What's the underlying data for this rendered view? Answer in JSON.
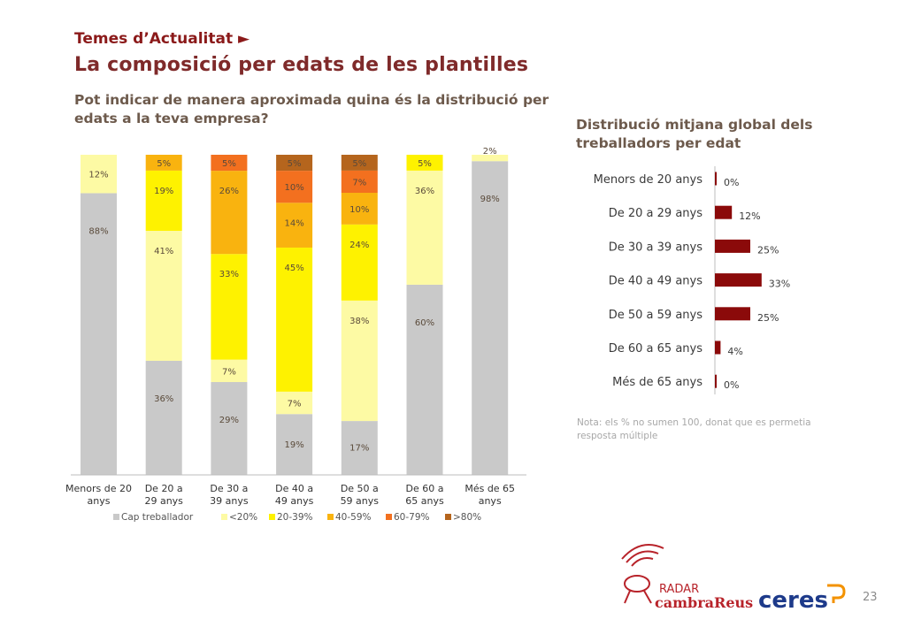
{
  "header": {
    "section": "Temes d’Actualitat ►",
    "title": "La composició per edats de les plantilles",
    "question": "Pot indicar de manera aproximada quina és la distribució per edats a la teva empresa?"
  },
  "right_panel": {
    "title": "Distribució mitjana global dels treballadors per edat",
    "note": "Nota: els % no sumen 100, donat que es permetia resposta múltiple"
  },
  "footer": {
    "page_number": "23",
    "logo_radar": "RADAR",
    "logo_cambra": "cambraReus",
    "logo_ceres": "ceres"
  },
  "chart_data": [
    {
      "type": "bar",
      "stacked": true,
      "categories": [
        "Menors de 20 anys",
        "De 20 a 29 anys",
        "De 30 a 39 anys",
        "De 40 a 49 anys",
        "De 50 a 59 anys",
        "De 60 a 65 anys",
        "Més de 65 anys"
      ],
      "series": [
        {
          "name": "Cap treballador",
          "color": "#c9c9c9",
          "values": [
            88,
            36,
            29,
            19,
            17,
            60,
            98
          ]
        },
        {
          "name": "<20%",
          "color": "#fdfaa4",
          "values": [
            12,
            41,
            7,
            7,
            38,
            36,
            2
          ]
        },
        {
          "name": "20-39%",
          "color": "#fef200",
          "values": [
            0,
            19,
            33,
            45,
            24,
            5,
            0
          ]
        },
        {
          "name": "40-59%",
          "color": "#f9b30f",
          "values": [
            0,
            5,
            26,
            14,
            10,
            0,
            0
          ]
        },
        {
          "name": "60-79%",
          "color": "#f3701f",
          "values": [
            0,
            0,
            5,
            10,
            7,
            0,
            0
          ]
        },
        {
          "name": ">80%",
          "color": "#b5651d",
          "values": [
            0,
            0,
            0,
            5,
            5,
            0,
            0
          ]
        }
      ],
      "labels": [
        [
          "88%",
          "12%",
          "",
          "",
          "",
          ""
        ],
        [
          "36%",
          "41%",
          "19%",
          "5%",
          "",
          ""
        ],
        [
          "29%",
          "7%",
          "33%",
          "26%",
          "5%",
          ""
        ],
        [
          "19%",
          "7%",
          "45%",
          "14%",
          "10%",
          "5%"
        ],
        [
          "17%",
          "38%",
          "24%",
          "10%",
          "7%",
          "5%"
        ],
        [
          "60%",
          "36%",
          "5%",
          "",
          "",
          ""
        ],
        [
          "98%",
          "2%",
          "",
          "",
          "",
          ""
        ]
      ],
      "legend": "bottom",
      "grid": false
    },
    {
      "type": "bar",
      "orientation": "horizontal",
      "categories": [
        "Menors de 20 anys",
        "De 20 a 29 anys",
        "De 30 a 39 anys",
        "De 40 a 49 anys",
        "De 50 a 59 anys",
        "De 60 a 65 anys",
        "Més de 65 anys"
      ],
      "values": [
        0,
        12,
        25,
        33,
        25,
        4,
        0
      ],
      "value_labels": [
        "0%",
        "12%",
        "25%",
        "33%",
        "25%",
        "4%",
        "0%"
      ],
      "color": "#8b0a0a",
      "grid": false
    }
  ]
}
